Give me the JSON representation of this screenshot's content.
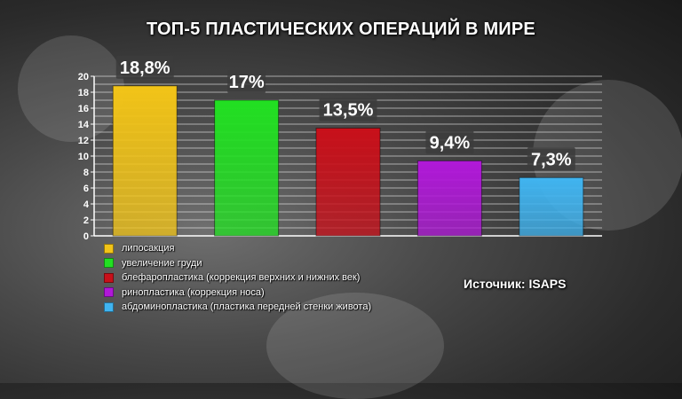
{
  "chart_data": {
    "type": "bar",
    "title": "ТОП-5 ПЛАСТИЧЕСКИХ ОПЕРАЦИЙ В МИРЕ",
    "categories": [
      "липосакция",
      "увеличение груди",
      "блефаропластика (коррекция верхних и нижних век)",
      "ринопластика (коррекция носа)",
      "абдоминопластика (пластика передней стенки живота)"
    ],
    "values": [
      18.8,
      17,
      13.5,
      9.4,
      7.3
    ],
    "value_labels": [
      "18,8%",
      "17%",
      "13,5%",
      "9,4%",
      "7,3%"
    ],
    "colors": [
      "#f2c418",
      "#22e022",
      "#c8101a",
      "#b018d8",
      "#40b4f0"
    ],
    "ylim": [
      0,
      20
    ],
    "yticks": [
      "0",
      "2",
      "4",
      "6",
      "8",
      "10",
      "12",
      "14",
      "16",
      "18",
      "20"
    ],
    "grid": true,
    "legend_position": "bottom-left",
    "source": "Источник: ISAPS"
  }
}
